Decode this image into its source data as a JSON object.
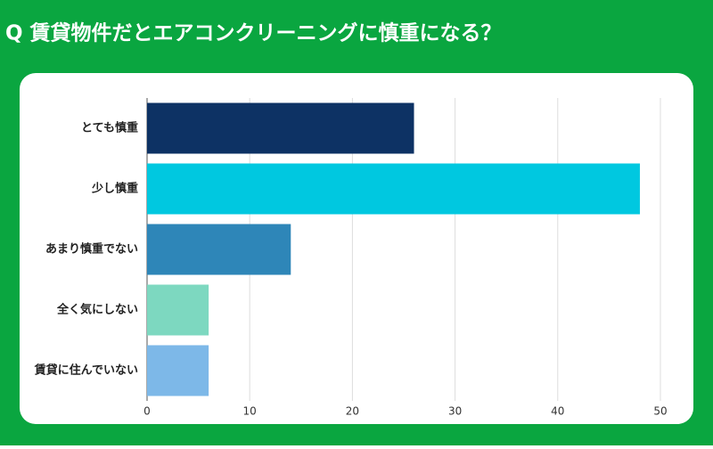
{
  "chart_data": {
    "type": "bar",
    "orientation": "horizontal",
    "title": "Q 賃貸物件だとエアコンクリーニングに慎重になる？",
    "categories": [
      "とても慎重",
      "少し慎重",
      "あまり慎重でない",
      "全く気にしない",
      "賃貸に住んでいない"
    ],
    "values": [
      26,
      48,
      14,
      6,
      6
    ],
    "colors": [
      "#0d3264",
      "#00c8e0",
      "#2e86b8",
      "#7dd8c0",
      "#7db8e8"
    ],
    "xlim": [
      0,
      50
    ],
    "xticks": [
      0,
      10,
      20,
      30,
      40,
      50
    ],
    "grid": true
  }
}
